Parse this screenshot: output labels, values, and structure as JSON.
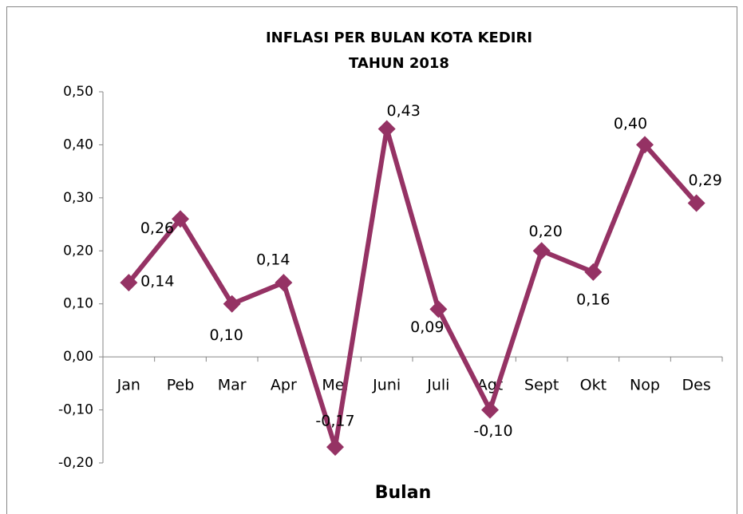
{
  "chart_data": {
    "type": "line",
    "title": "INFLASI PER BULAN KOTA KEDIRI",
    "subtitle": "TAHUN 2018",
    "x_label": "Bulan",
    "categories": [
      "Jan",
      "Peb",
      "Mar",
      "Apr",
      "Mei",
      "Juni",
      "Juli",
      "Agt",
      "Sept",
      "Okt",
      "Nop",
      "Des"
    ],
    "series": [
      {
        "name": "Inflasi",
        "color": "#953264",
        "values": [
          0.14,
          0.26,
          0.1,
          0.14,
          -0.17,
          0.43,
          0.09,
          -0.1,
          0.2,
          0.16,
          0.4,
          0.29
        ],
        "value_labels": [
          "0,14",
          "0,26",
          "0,10",
          "0,14",
          "-0,17",
          "0,43",
          "0,09",
          "-0,10",
          "0,20",
          "0,16",
          "0,40",
          "0,29"
        ]
      }
    ],
    "ylim": [
      -0.2,
      0.5
    ],
    "yticks": [
      {
        "value": 0.5,
        "label": "0,50"
      },
      {
        "value": 0.4,
        "label": "0,40"
      },
      {
        "value": 0.3,
        "label": "0,30"
      },
      {
        "value": 0.2,
        "label": "0,20"
      },
      {
        "value": 0.1,
        "label": "0,10"
      },
      {
        "value": 0,
        "label": "0,00"
      },
      {
        "value": -0.1,
        "label": "-0,10"
      },
      {
        "value": -0.2,
        "label": "-0,20"
      }
    ],
    "grid": false
  }
}
